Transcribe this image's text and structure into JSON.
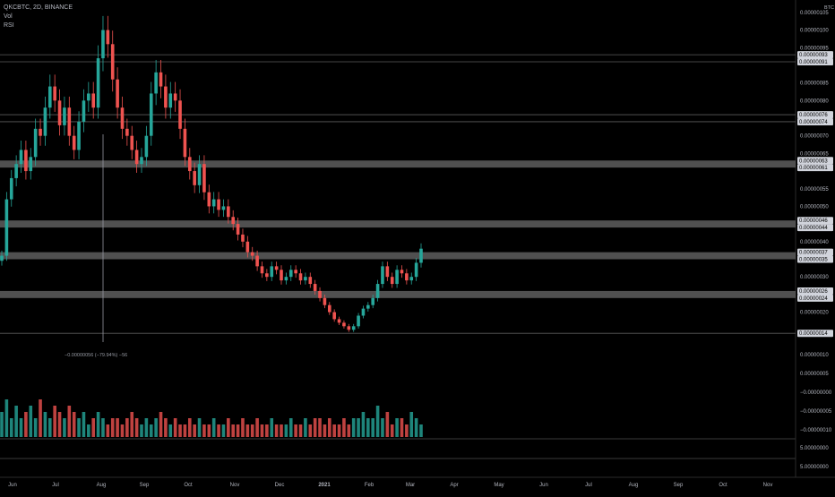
{
  "legend": {
    "symbol_line": "QKCBTC, 2D, BINANCE",
    "volume_label": "Vol",
    "rsi_label": "RSI"
  },
  "colors": {
    "background": "#000000",
    "up": "#26a69a",
    "down": "#ef5350",
    "zone": "#6b6b6b",
    "text": "#b2b5be",
    "grid": "#1a1a1a"
  },
  "measurement_label": "−0.00000056 (−79.94%) −56",
  "chart_data": {
    "type": "candlestick",
    "title": "QKCBTC, 2D, BINANCE",
    "price_axis": {
      "ticks": [
        "0.00000105",
        "0.00000100",
        "0.00000095",
        "0.00000085",
        "0.00000080",
        "0.00000070",
        "0.00000065",
        "0.00000055",
        "0.00000050",
        "0.00000040",
        "0.00000030",
        "0.00000020"
      ],
      "highlighted_levels": [
        "0.00000093",
        "0.00000091",
        "0.00000076",
        "0.00000074",
        "0.00000063",
        "0.00000061",
        "0.00000046",
        "0.00000044",
        "0.00000037",
        "0.00000035",
        "0.00000026",
        "0.00000024",
        "0.00000014"
      ],
      "range": [
        1.1e-07,
        1.07e-06
      ],
      "unit": "BTC"
    },
    "volume_axis": {
      "ticks": [
        "0.00000010",
        "0.00000005",
        "−0.00000000",
        "−0.00000005",
        "−0.00000010"
      ]
    },
    "rsi_axis": {
      "ticks": [
        "5.00000000",
        "5.00000000"
      ]
    },
    "time_axis": {
      "ticks": [
        "Jun",
        "Jul",
        "Aug",
        "Sep",
        "Oct",
        "Nov",
        "Dec",
        "2021",
        "Feb",
        "Mar",
        "Apr",
        "May",
        "Jun",
        "Jul",
        "Aug",
        "Sep",
        "Oct",
        "Nov"
      ]
    },
    "zones": [
      {
        "top": 6.3e-07,
        "bottom": 6.1e-07
      },
      {
        "top": 4.6e-07,
        "bottom": 4.4e-07
      },
      {
        "top": 3.7e-07,
        "bottom": 3.5e-07
      },
      {
        "top": 2.6e-07,
        "bottom": 2.4e-07
      }
    ],
    "lines": [
      9.3e-07,
      9.1e-07,
      7.6e-07,
      7.4e-07,
      1.4e-07
    ],
    "price_path": [
      3.6e-07,
      5.2e-07,
      5.8e-07,
      6.2e-07,
      6.6e-07,
      6e-07,
      6.4e-07,
      7.2e-07,
      7e-07,
      7.8e-07,
      8.4e-07,
      8e-07,
      7.3e-07,
      7.8e-07,
      7e-07,
      6.6e-07,
      7.4e-07,
      8e-07,
      8.2e-07,
      7.8e-07,
      9.2e-07,
      1e-06,
      9.6e-07,
      8.6e-07,
      7.8e-07,
      7.2e-07,
      7e-07,
      6.6e-07,
      6.2e-07,
      6.4e-07,
      7e-07,
      8.2e-07,
      8.8e-07,
      8.4e-07,
      7.8e-07,
      8.2e-07,
      8e-07,
      7.2e-07,
      6.4e-07,
      6e-07,
      5.6e-07,
      6.2e-07,
      5.4e-07,
      5e-07,
      5.2e-07,
      4.9e-07,
      5e-07,
      4.7e-07,
      4.5e-07,
      4.2e-07,
      4e-07,
      3.7e-07,
      3.6e-07,
      3.3e-07,
      3.1e-07,
      3e-07,
      3.3e-07,
      3.2e-07,
      2.9e-07,
      3e-07,
      3.2e-07,
      3.1e-07,
      2.9e-07,
      3e-07,
      2.8e-07,
      2.6e-07,
      2.4e-07,
      2.2e-07,
      2e-07,
      1.8e-07,
      1.7e-07,
      1.6e-07,
      1.5e-07,
      1.6e-07,
      1.9e-07,
      2.1e-07,
      2.2e-07,
      2.4e-07,
      2.8e-07,
      3.3e-07,
      3e-07,
      2.8e-07,
      3.2e-07,
      3.1e-07,
      2.9e-07,
      3e-07,
      3.4e-07,
      3.8e-07
    ],
    "volume_path": [
      4,
      6,
      3,
      5,
      3,
      4,
      5,
      3,
      6,
      4,
      3,
      5,
      4,
      3,
      5,
      4,
      3,
      4,
      2,
      3,
      4,
      3,
      2,
      3,
      3,
      2,
      3,
      4,
      3,
      2,
      3,
      2,
      3,
      4,
      3,
      2,
      3,
      2,
      2,
      3,
      2,
      3,
      2,
      2,
      3,
      2,
      2,
      3,
      2,
      2,
      3,
      2,
      2,
      3,
      2,
      2,
      3,
      2,
      2,
      2,
      3,
      2,
      2,
      3,
      2,
      3,
      3,
      2,
      3,
      2,
      2,
      3,
      2,
      3,
      3,
      4,
      3,
      3,
      5,
      3,
      4,
      2,
      3,
      3,
      2,
      4,
      3,
      2
    ],
    "measurement": {
      "change": "−0.00000056",
      "percent": "−79.94%",
      "bars": "−56"
    }
  }
}
